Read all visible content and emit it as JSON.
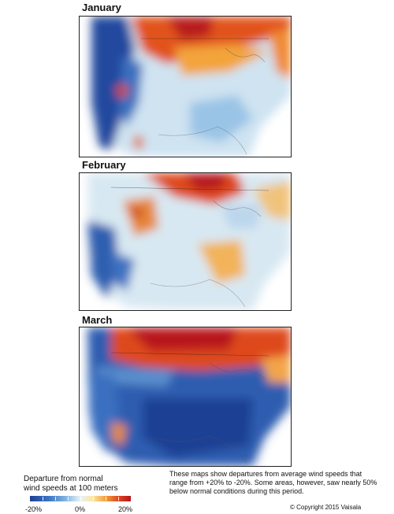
{
  "panels": [
    {
      "title": "January",
      "pattern": "jan"
    },
    {
      "title": "February",
      "pattern": "feb"
    },
    {
      "title": "March",
      "pattern": "mar"
    }
  ],
  "legend": {
    "title_line1": "Departure from normal",
    "title_line2": "wind speeds at 100 meters",
    "min_label": "-20%",
    "mid_label": "0%",
    "max_label": "20%",
    "colors": [
      "#1e3f96",
      "#3a73c4",
      "#7fb3df",
      "#e8f2f7",
      "#fbe7a4",
      "#f4a03a",
      "#e0431f",
      "#b4141c"
    ]
  },
  "caption": "These maps show departures from average wind speeds that range from +20% to -20%. Some areas, however, saw nearly 50% below normal conditions during this period.",
  "copyright": "© Copyright 2015 Vaisala"
}
